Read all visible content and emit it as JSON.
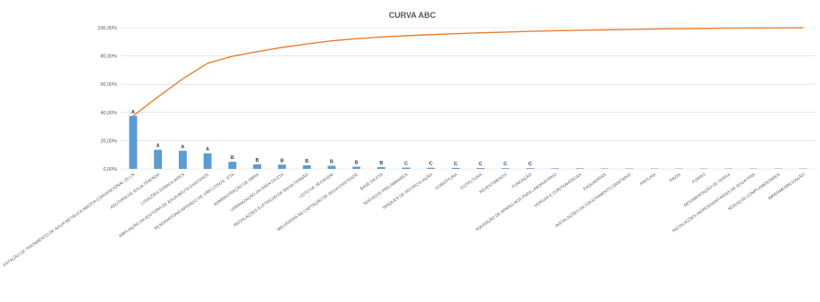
{
  "chart_data": {
    "type": "bar",
    "title": "CURVA ABC",
    "xlabel": "",
    "ylabel": "",
    "ylim": [
      0,
      100
    ],
    "y_ticks": [
      "0,00%",
      "20,00%",
      "40,00%",
      "60,00%",
      "80,00%",
      "100,00%"
    ],
    "grid": true,
    "legend": "none",
    "categories": [
      "ESTAÇÃO DE TRATAMENTO DE ÁGUA METÁLICA ABERTA CONVENCIONAL 25 L/S",
      "ADUTORA DE ÁGUA TRATADA",
      "LIGAÇÕES DOMICILIARES",
      "AMPLIAÇÃO DA ADUTORA DE ÁGUA BRUTA EXISTENTE",
      "RESERVATÓRIO APOIADO DE 1000 LITROS - ETA",
      "ADMINISTRAÇÃO DE OBRA",
      "URBANIZAÇÃO DA ÁREA DA ETA",
      "INSTALAÇÕES ELÉTRICAS DE BAIXA TENSÃO",
      "LEITO DE SECAGEM",
      "MELHORIAS NA CAPTAÇÃO DE ÁGUA EXISTENTE",
      "BASE DA ETA",
      "SERVIÇOS PRELIMINARES",
      "TANQUES DE RECIRCULAÇÃO",
      "COBERTURA",
      "ESTRUTURA",
      "REVESTIMENTO",
      "FUNDAÇÃO",
      "AQUISIÇÃO DE APARELHOS PARA LABORATÓRIO",
      "VERGAS E CONTRAVERGAS",
      "ESQUADRIAS",
      "INSTALAÇÕES DE ESGOTAMENTO SANITÁRIO",
      "PINTURA",
      "PISOS",
      "FORRO",
      "MOVIMENTAÇÃO DE TERRA",
      "INSTALAÇÕES HIDROSSANITÁRIAS DE ÁGUA FRIA",
      "SERVIÇOS COMPLEMENTARES",
      "IMPERMEABILIZAÇÃO"
    ],
    "series": [
      {
        "type": "bar",
        "color": "#5b9bd5",
        "values": [
          37.5,
          13.5,
          12.8,
          11.0,
          5.0,
          3.2,
          3.0,
          2.5,
          2.2,
          1.5,
          1.2,
          0.9,
          0.8,
          0.7,
          0.6,
          0.5,
          0.5,
          0.4,
          0.4,
          0.3,
          0.3,
          0.3,
          0.2,
          0.2,
          0.2,
          0.2,
          0.1,
          0.1
        ],
        "labels": [
          "A",
          "A",
          "A",
          "A",
          "B",
          "B",
          "B",
          "B",
          "B",
          "B",
          "B",
          "C",
          "C",
          "C",
          "C",
          "C",
          "C",
          "",
          "",
          "",
          "",
          "",
          "",
          "",
          "",
          "",
          "",
          ""
        ]
      },
      {
        "type": "line",
        "color": "#ed7d31",
        "values": [
          37.5,
          51.0,
          63.8,
          74.8,
          79.8,
          83.0,
          86.0,
          88.5,
          90.7,
          92.2,
          93.4,
          94.3,
          95.1,
          95.8,
          96.4,
          96.9,
          97.4,
          97.8,
          98.2,
          98.5,
          98.8,
          99.1,
          99.3,
          99.5,
          99.7,
          99.8,
          99.9,
          100.0
        ]
      }
    ]
  }
}
